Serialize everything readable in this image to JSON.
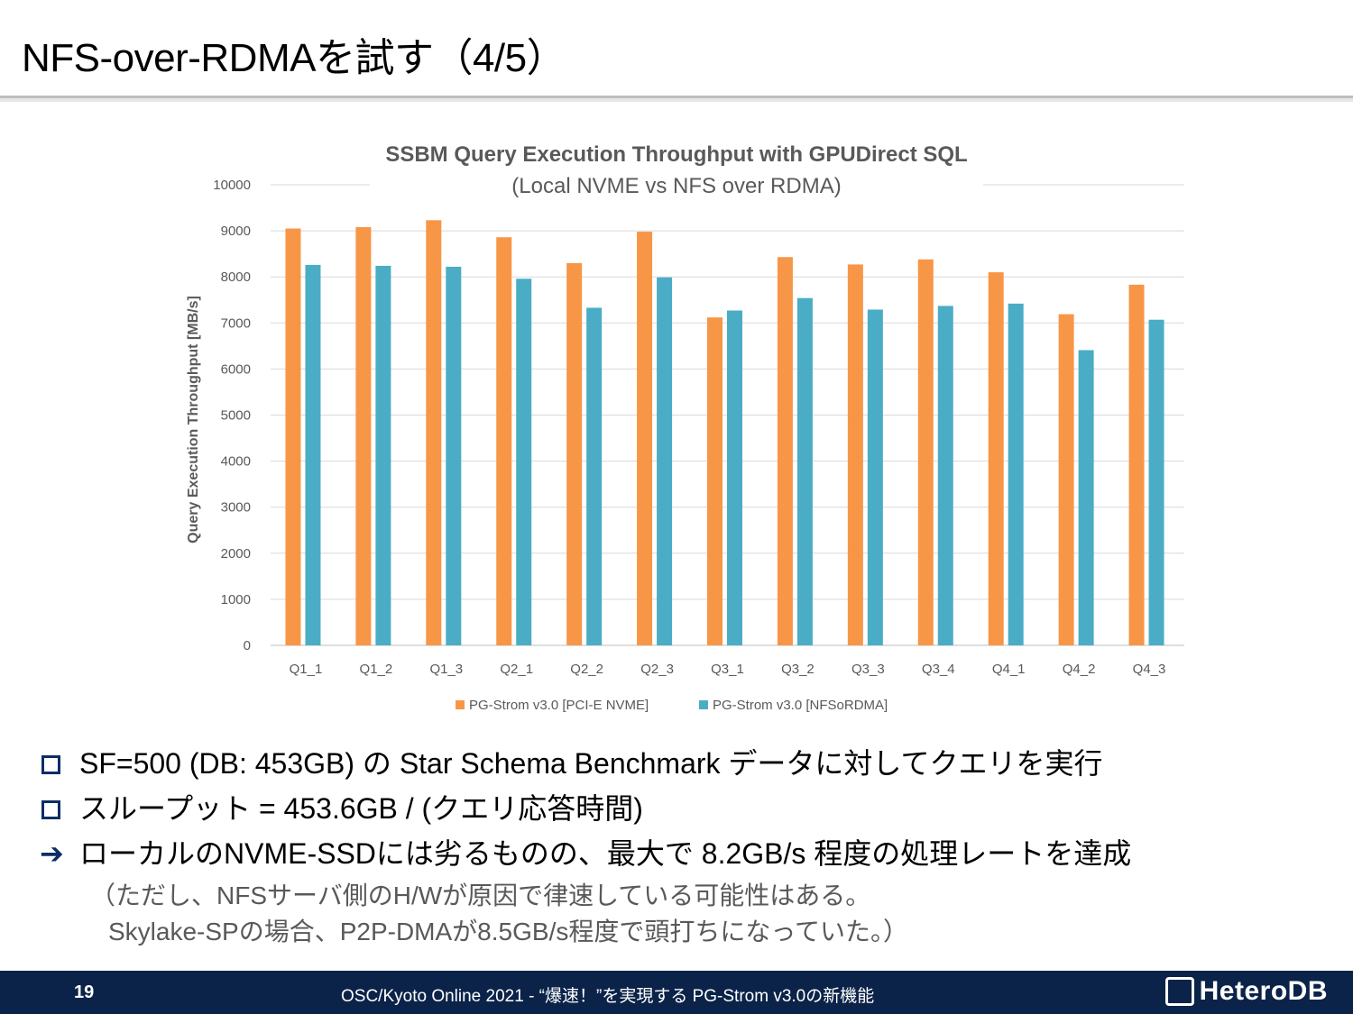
{
  "slide": {
    "title": "NFS-over-RDMAを試す（4/5）"
  },
  "chart_data": {
    "type": "bar",
    "title": "SSBM Query Execution Throughput with GPUDirect SQL",
    "subtitle": "(Local NVME vs NFS over RDMA)",
    "ylabel": "Query Execution Throughput [MB/s]",
    "xlabel": "",
    "ylim": [
      0,
      10000
    ],
    "yticks": [
      0,
      1000,
      2000,
      3000,
      4000,
      5000,
      6000,
      7000,
      8000,
      9000,
      10000
    ],
    "grid": true,
    "legend_position": "bottom",
    "categories": [
      "Q1_1",
      "Q1_2",
      "Q1_3",
      "Q2_1",
      "Q2_2",
      "Q2_3",
      "Q3_1",
      "Q3_2",
      "Q3_3",
      "Q3_4",
      "Q4_1",
      "Q4_2",
      "Q4_3"
    ],
    "series": [
      {
        "name": "PG-Strom v3.0 [PCI-E NVME]",
        "color": "#f79646",
        "values": [
          9050,
          9080,
          9230,
          8860,
          8300,
          8980,
          7120,
          8430,
          8270,
          8380,
          8100,
          7190,
          7830
        ]
      },
      {
        "name": "PG-Strom v3.0 [NFSoRDMA]",
        "color": "#4bacc6",
        "values": [
          8260,
          8240,
          8220,
          7960,
          7330,
          7990,
          7270,
          7540,
          7290,
          7370,
          7420,
          6410,
          7070
        ]
      }
    ]
  },
  "bullets": [
    {
      "marker": "box",
      "text": "SF=500 (DB: 453GB) の Star Schema Benchmark データに対してクエリを実行"
    },
    {
      "marker": "box",
      "text": "スループット = 453.6GB / (クエリ応答時間)"
    },
    {
      "marker": "arrow",
      "text": "ローカルのNVME-SSDには劣るものの、最大で 8.2GB/s 程度の処理レートを達成"
    }
  ],
  "notes": [
    "（ただし、NFSサーバ側のH/Wが原因で律速している可能性はある。",
    "Skylake-SPの場合、P2P-DMAが8.5GB/s程度で頭打ちになっていた。）"
  ],
  "footer": {
    "page_number": "19",
    "text": "OSC/Kyoto Online 2021 - “爆速！”を実現する PG-Strom v3.0の新機能",
    "logo": "HeteroDB"
  },
  "colors": {
    "footer_bg": "#0b2349",
    "bullet_marker": "#0b2d63"
  }
}
